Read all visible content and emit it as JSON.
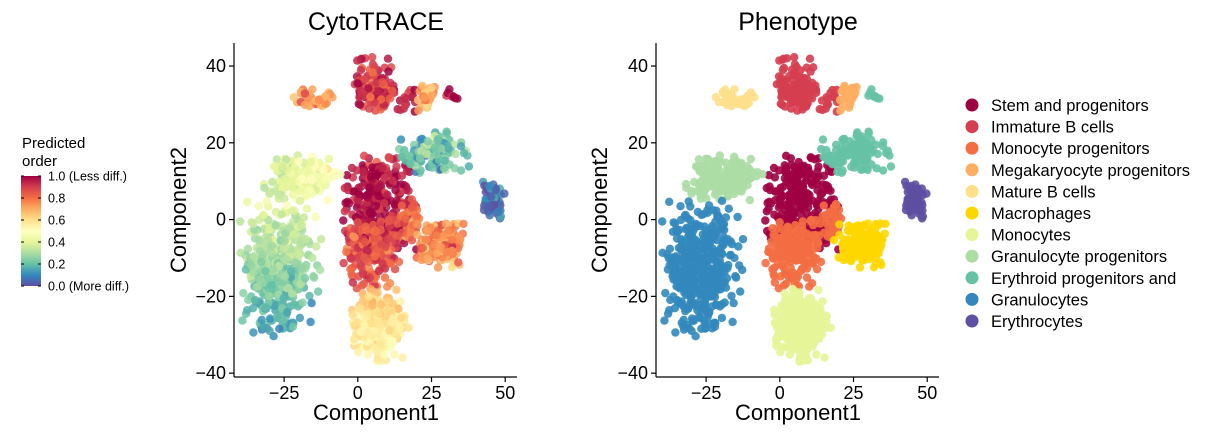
{
  "chart_data": [
    {
      "type": "scatter",
      "title": "CytoTRACE",
      "xlabel": "Component1",
      "ylabel": "Component2",
      "xlim": [
        -42,
        54
      ],
      "ylim": [
        -41,
        46
      ],
      "xticks": [
        -25,
        0,
        25,
        50
      ],
      "xtick_labels": [
        "−25",
        "0",
        "25",
        "50"
      ],
      "yticks": [
        -40,
        -20,
        0,
        20,
        40
      ],
      "ytick_labels": [
        "−40",
        "−20",
        "0",
        "20",
        "40"
      ],
      "grid": false,
      "color_mode": "continuous",
      "colorbar": {
        "title_lines": [
          "Predicted",
          "order"
        ],
        "range": [
          0,
          1
        ],
        "ticks": [
          {
            "value": 1.0,
            "label": "1.0 (Less diff.)"
          },
          {
            "value": 0.8,
            "label": "0.8"
          },
          {
            "value": 0.6,
            "label": "0.6"
          },
          {
            "value": 0.4,
            "label": "0.4"
          },
          {
            "value": 0.2,
            "label": "0.2"
          },
          {
            "value": 0.0,
            "label": "0.0 (More diff.)"
          }
        ],
        "colors": [
          "#5e4fa2",
          "#3288bd",
          "#66c2a5",
          "#abdda4",
          "#e6f598",
          "#ffffbf",
          "#fee08b",
          "#fdae61",
          "#f46d43",
          "#d53e4f",
          "#9e0142"
        ]
      }
    },
    {
      "type": "scatter",
      "title": "Phenotype",
      "xlabel": "Component1",
      "ylabel": "Component2",
      "xlim": [
        -42,
        54
      ],
      "ylim": [
        -41,
        46
      ],
      "xticks": [
        -25,
        0,
        25,
        50
      ],
      "xtick_labels": [
        "−25",
        "0",
        "25",
        "50"
      ],
      "yticks": [
        -40,
        -20,
        0,
        20,
        40
      ],
      "ytick_labels": [
        "−40",
        "−20",
        "0",
        "20",
        "40"
      ],
      "grid": false,
      "color_mode": "categorical",
      "legend_position": "right",
      "legend": [
        {
          "label": "Stem and progenitors",
          "color": "#9e0142"
        },
        {
          "label": "Immature B cells",
          "color": "#d53e4f"
        },
        {
          "label": "Monocyte progenitors",
          "color": "#f46d43"
        },
        {
          "label": "Megakaryocyte progenitors",
          "color": "#fdae61"
        },
        {
          "label": "Mature B cells",
          "color": "#fee08b"
        },
        {
          "label": "Macrophages",
          "color": "#ffd700"
        },
        {
          "label": "Monocytes",
          "color": "#e6f598"
        },
        {
          "label": "Granulocyte progenitors",
          "color": "#abdda4"
        },
        {
          "label": "Erythroid progenitors and",
          "color": "#66c2a5"
        },
        {
          "label": "Granulocytes",
          "color": "#3288bd"
        },
        {
          "label": "Erythrocytes",
          "color": "#5e4fa2"
        }
      ]
    }
  ],
  "clusters": [
    {
      "name": "stem-and-progenitors",
      "phenotype": 0,
      "score": 0.98,
      "n": 260,
      "x": [
        -5,
        20
      ],
      "y": [
        -8,
        17
      ],
      "center": [
        7,
        5
      ],
      "spread": [
        7,
        7
      ]
    },
    {
      "name": "immature-b-top",
      "phenotype": 1,
      "score": 0.9,
      "n": 120,
      "x": [
        -2,
        16
      ],
      "y": [
        28,
        43
      ],
      "center": [
        5,
        35
      ],
      "spread": [
        4,
        4
      ]
    },
    {
      "name": "immature-b-small",
      "phenotype": 1,
      "score": 0.92,
      "n": 14,
      "x": [
        14,
        20
      ],
      "y": [
        28,
        34
      ],
      "center": [
        17,
        31
      ],
      "spread": [
        2,
        2
      ]
    },
    {
      "name": "megakaryocyte-progenitors",
      "phenotype": 3,
      "score": 0.7,
      "n": 30,
      "x": [
        20,
        27
      ],
      "y": [
        28,
        36
      ],
      "center": [
        23,
        32
      ],
      "spread": [
        2,
        2
      ]
    },
    {
      "name": "mature-b-cells",
      "phenotype": 4,
      "score": 0.75,
      "n": 40,
      "x": [
        -22,
        -8
      ],
      "y": [
        29,
        34
      ],
      "center": [
        -14,
        31.5
      ],
      "spread": [
        4,
        1.5
      ]
    },
    {
      "name": "erythroid-progenitors-small",
      "phenotype": 8,
      "score": 0.95,
      "n": 8,
      "x": [
        30,
        34
      ],
      "y": [
        31,
        34
      ],
      "center": [
        32,
        32.5
      ],
      "spread": [
        1,
        1
      ]
    },
    {
      "name": "monocyte-progenitors",
      "phenotype": 2,
      "score": 0.85,
      "n": 170,
      "x": [
        -5,
        15
      ],
      "y": [
        -18,
        0
      ],
      "center": [
        5,
        -8
      ],
      "spread": [
        5,
        5
      ]
    },
    {
      "name": "monocyte-progenitors-right",
      "phenotype": 2,
      "score": 0.8,
      "n": 40,
      "x": [
        14,
        22
      ],
      "y": [
        -5,
        5
      ],
      "center": [
        18,
        0
      ],
      "spread": [
        2,
        3
      ]
    },
    {
      "name": "macrophages",
      "phenotype": 5,
      "score": 0.75,
      "n": 150,
      "x": [
        18,
        36
      ],
      "y": [
        -13,
        -1
      ],
      "center": [
        28,
        -6
      ],
      "spread": [
        4,
        3
      ]
    },
    {
      "name": "monocytes",
      "phenotype": 6,
      "score": 0.55,
      "n": 260,
      "x": [
        -2,
        18
      ],
      "y": [
        -37,
        -18
      ],
      "center": [
        7,
        -28
      ],
      "spread": [
        5,
        5
      ]
    },
    {
      "name": "granulocyte-progenitors",
      "phenotype": 7,
      "score": 0.4,
      "n": 170,
      "x": [
        -33,
        -5
      ],
      "y": [
        5,
        17
      ],
      "center": [
        -20,
        11
      ],
      "spread": [
        7,
        3
      ]
    },
    {
      "name": "erythroid-progenitors",
      "phenotype": 8,
      "score": 0.2,
      "n": 110,
      "x": [
        12,
        38
      ],
      "y": [
        12,
        23
      ],
      "center": [
        26,
        17
      ],
      "spread": [
        6,
        2.5
      ]
    },
    {
      "name": "granulocytes",
      "phenotype": 9,
      "score": 0.22,
      "n": 420,
      "x": [
        -40,
        -12
      ],
      "y": [
        -31,
        5
      ],
      "center": [
        -27,
        -12
      ],
      "spread": [
        6,
        9
      ]
    },
    {
      "name": "erythrocytes",
      "phenotype": 10,
      "score": 0.06,
      "n": 60,
      "x": [
        40,
        50
      ],
      "y": [
        0,
        10
      ],
      "center": [
        46,
        5
      ],
      "spread": [
        2,
        2.5
      ]
    }
  ]
}
